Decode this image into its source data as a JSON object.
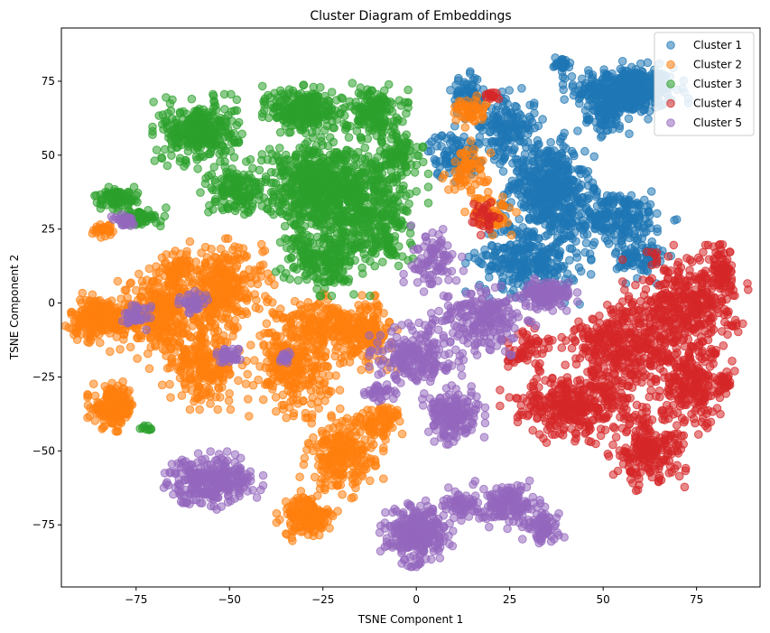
{
  "chart_data": {
    "type": "scatter",
    "title": "Cluster Diagram of Embeddings",
    "xlabel": "TSNE Component 1",
    "ylabel": "TSNE Component 2",
    "xlim": [
      -95,
      92
    ],
    "ylim": [
      -96,
      93
    ],
    "xticks": [
      -75,
      -50,
      -25,
      0,
      25,
      50,
      75
    ],
    "yticks": [
      -75,
      -50,
      -25,
      0,
      25,
      50,
      75
    ],
    "grid": false,
    "legend_position": "top-right",
    "series": [
      {
        "name": "Cluster 1",
        "color": "#1f77b4",
        "blobs": [
          {
            "cx": 56,
            "cy": 72,
            "rx": 12,
            "ry": 7,
            "n": 420
          },
          {
            "cx": 52,
            "cy": 63,
            "rx": 5,
            "ry": 5,
            "n": 80
          },
          {
            "cx": 39,
            "cy": 81,
            "rx": 2,
            "ry": 2,
            "n": 30
          },
          {
            "cx": 35,
            "cy": 40,
            "rx": 9,
            "ry": 13,
            "n": 420
          },
          {
            "cx": 52,
            "cy": 29,
            "rx": 14,
            "ry": 8,
            "n": 260
          },
          {
            "cx": 24,
            "cy": 60,
            "rx": 7,
            "ry": 9,
            "n": 160
          },
          {
            "cx": 14,
            "cy": 70,
            "rx": 4,
            "ry": 6,
            "n": 70
          },
          {
            "cx": 30,
            "cy": 15,
            "rx": 12,
            "ry": 11,
            "n": 300
          },
          {
            "cx": 10,
            "cy": 50,
            "rx": 6,
            "ry": 7,
            "n": 90
          },
          {
            "cx": 60,
            "cy": 15,
            "rx": 6,
            "ry": 6,
            "n": 80
          }
        ]
      },
      {
        "name": "Cluster 2",
        "color": "#ff7f0e",
        "blobs": [
          {
            "cx": -85,
            "cy": -5,
            "rx": 7,
            "ry": 6,
            "n": 230
          },
          {
            "cx": -68,
            "cy": -4,
            "rx": 10,
            "ry": 13,
            "n": 320
          },
          {
            "cx": -52,
            "cy": 5,
            "rx": 10,
            "ry": 12,
            "n": 320
          },
          {
            "cx": -57,
            "cy": -22,
            "rx": 8,
            "ry": 10,
            "n": 220
          },
          {
            "cx": -81,
            "cy": -35,
            "rx": 5,
            "ry": 6,
            "n": 180
          },
          {
            "cx": -64,
            "cy": 12,
            "rx": 4,
            "ry": 4,
            "n": 60
          },
          {
            "cx": -33,
            "cy": -22,
            "rx": 9,
            "ry": 12,
            "n": 260
          },
          {
            "cx": -24,
            "cy": -8,
            "rx": 12,
            "ry": 8,
            "n": 220
          },
          {
            "cx": -20,
            "cy": -52,
            "rx": 8,
            "ry": 10,
            "n": 240
          },
          {
            "cx": -29,
            "cy": -72,
            "rx": 6,
            "ry": 6,
            "n": 160
          },
          {
            "cx": -10,
            "cy": -40,
            "rx": 6,
            "ry": 5,
            "n": 80
          },
          {
            "cx": -14,
            "cy": -10,
            "rx": 7,
            "ry": 9,
            "n": 150
          },
          {
            "cx": -83,
            "cy": 25,
            "rx": 3,
            "ry": 2,
            "n": 30
          },
          {
            "cx": 14,
            "cy": 45,
            "rx": 5,
            "ry": 7,
            "n": 70
          },
          {
            "cx": 20,
            "cy": 30,
            "rx": 5,
            "ry": 5,
            "n": 60
          },
          {
            "cx": 14,
            "cy": 65,
            "rx": 4,
            "ry": 4,
            "n": 50
          }
        ]
      },
      {
        "name": "Cluster 3",
        "color": "#2ca02c",
        "blobs": [
          {
            "cx": -58,
            "cy": 58,
            "rx": 9,
            "ry": 9,
            "n": 320
          },
          {
            "cx": -30,
            "cy": 65,
            "rx": 8,
            "ry": 7,
            "n": 260
          },
          {
            "cx": -12,
            "cy": 65,
            "rx": 7,
            "ry": 7,
            "n": 160
          },
          {
            "cx": -28,
            "cy": 40,
            "rx": 12,
            "ry": 13,
            "n": 460
          },
          {
            "cx": -15,
            "cy": 35,
            "rx": 13,
            "ry": 15,
            "n": 460
          },
          {
            "cx": -48,
            "cy": 38,
            "rx": 7,
            "ry": 7,
            "n": 160
          },
          {
            "cx": -25,
            "cy": 15,
            "rx": 9,
            "ry": 9,
            "n": 220
          },
          {
            "cx": -80,
            "cy": 35,
            "rx": 5,
            "ry": 3,
            "n": 80
          },
          {
            "cx": -74,
            "cy": 29,
            "rx": 5,
            "ry": 3,
            "n": 60
          },
          {
            "cx": -5,
            "cy": 50,
            "rx": 5,
            "ry": 6,
            "n": 80
          },
          {
            "cx": -10,
            "cy": 20,
            "rx": 6,
            "ry": 6,
            "n": 80
          },
          {
            "cx": -72,
            "cy": -42,
            "rx": 2,
            "ry": 1,
            "n": 10
          }
        ]
      },
      {
        "name": "Cluster 4",
        "color": "#d62728",
        "blobs": [
          {
            "cx": 72,
            "cy": 0,
            "rx": 12,
            "ry": 14,
            "n": 380
          },
          {
            "cx": 56,
            "cy": -15,
            "rx": 14,
            "ry": 12,
            "n": 380
          },
          {
            "cx": 42,
            "cy": -35,
            "rx": 14,
            "ry": 9,
            "n": 330
          },
          {
            "cx": 62,
            "cy": -50,
            "rx": 9,
            "ry": 10,
            "n": 220
          },
          {
            "cx": 74,
            "cy": -28,
            "rx": 8,
            "ry": 12,
            "n": 220
          },
          {
            "cx": 82,
            "cy": 10,
            "rx": 3,
            "ry": 7,
            "n": 70
          },
          {
            "cx": 82,
            "cy": -28,
            "rx": 2,
            "ry": 3,
            "n": 30
          },
          {
            "cx": 30,
            "cy": -15,
            "rx": 5,
            "ry": 6,
            "n": 60
          },
          {
            "cx": 20,
            "cy": 70,
            "rx": 2,
            "ry": 2,
            "n": 14
          },
          {
            "cx": 18,
            "cy": 30,
            "rx": 4,
            "ry": 5,
            "n": 30
          }
        ]
      },
      {
        "name": "Cluster 5",
        "color": "#9467bd",
        "blobs": [
          {
            "cx": -55,
            "cy": -60,
            "rx": 10,
            "ry": 7,
            "n": 300
          },
          {
            "cx": 0,
            "cy": -78,
            "rx": 7,
            "ry": 8,
            "n": 300
          },
          {
            "cx": 25,
            "cy": -68,
            "rx": 7,
            "ry": 6,
            "n": 170
          },
          {
            "cx": 34,
            "cy": -76,
            "rx": 4,
            "ry": 4,
            "n": 80
          },
          {
            "cx": 10,
            "cy": -38,
            "rx": 6,
            "ry": 7,
            "n": 200
          },
          {
            "cx": 12,
            "cy": -68,
            "rx": 4,
            "ry": 4,
            "n": 60
          },
          {
            "cx": 0,
            "cy": -18,
            "rx": 9,
            "ry": 9,
            "n": 220
          },
          {
            "cx": 18,
            "cy": -5,
            "rx": 10,
            "ry": 9,
            "n": 220
          },
          {
            "cx": 35,
            "cy": 3,
            "rx": 6,
            "ry": 4,
            "n": 120
          },
          {
            "cx": 5,
            "cy": 15,
            "rx": 6,
            "ry": 8,
            "n": 90
          },
          {
            "cx": -75,
            "cy": -5,
            "rx": 3,
            "ry": 3,
            "n": 40
          },
          {
            "cx": -60,
            "cy": 0,
            "rx": 3,
            "ry": 3,
            "n": 40
          },
          {
            "cx": -50,
            "cy": -18,
            "rx": 3,
            "ry": 3,
            "n": 40
          },
          {
            "cx": -78,
            "cy": 28,
            "rx": 3,
            "ry": 2,
            "n": 30
          },
          {
            "cx": -35,
            "cy": -18,
            "rx": 2,
            "ry": 2,
            "n": 20
          },
          {
            "cx": -10,
            "cy": -30,
            "rx": 3,
            "ry": 3,
            "n": 30
          }
        ]
      }
    ]
  }
}
